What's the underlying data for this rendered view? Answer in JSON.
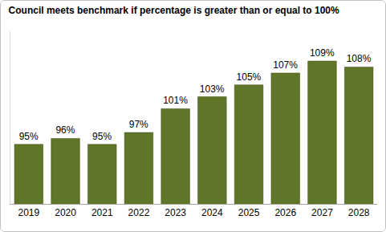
{
  "chart_data": {
    "type": "bar",
    "title": "Council meets benchmark if percentage is greater than or equal to 100%",
    "categories": [
      "2019",
      "2020",
      "2021",
      "2022",
      "2023",
      "2024",
      "2025",
      "2026",
      "2027",
      "2028"
    ],
    "values": [
      95,
      96,
      95,
      97,
      101,
      103,
      105,
      107,
      109,
      108
    ],
    "value_labels": [
      "95%",
      "96%",
      "95%",
      "97%",
      "101%",
      "103%",
      "105%",
      "107%",
      "109%",
      "108%"
    ],
    "color": "#5f7527",
    "ylim": [
      85,
      114
    ],
    "grid": false,
    "data_labels": true,
    "tick_labels": "x"
  }
}
